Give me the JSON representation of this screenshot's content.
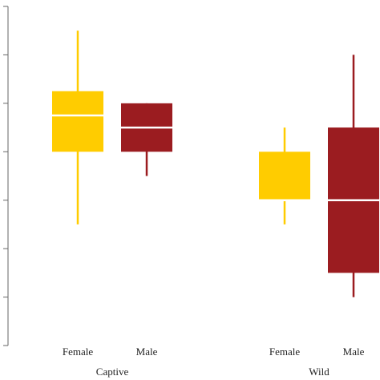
{
  "chart_data": {
    "type": "box",
    "title": "",
    "xlabel": "",
    "ylabel": "",
    "ylim": [
      0,
      7
    ],
    "y_ticks": [
      0,
      1,
      2,
      3,
      4,
      5,
      6,
      7
    ],
    "y_tick_labels_visible": false,
    "grid": false,
    "legend": "none",
    "groups": [
      {
        "label": "Captive",
        "boxes": [
          {
            "category": "Female",
            "color": "#FFCC00",
            "whisker_low": 2.5,
            "q1": 4.0,
            "median": 4.75,
            "q3": 5.25,
            "whisker_high": 6.5
          },
          {
            "category": "Male",
            "color": "#9B1C20",
            "whisker_low": 3.5,
            "q1": 4.0,
            "median": 4.5,
            "q3": 5.0,
            "whisker_high": 5.0
          }
        ]
      },
      {
        "label": "Wild",
        "boxes": [
          {
            "category": "Female",
            "color": "#FFCC00",
            "whisker_low": 2.5,
            "q1": 3.0,
            "median": 3.0,
            "q3": 4.0,
            "whisker_high": 4.5
          },
          {
            "category": "Male",
            "color": "#9B1C20",
            "whisker_low": 1.0,
            "q1": 1.5,
            "median": 3.0,
            "q3": 4.5,
            "whisker_high": 6.0
          }
        ]
      }
    ]
  }
}
